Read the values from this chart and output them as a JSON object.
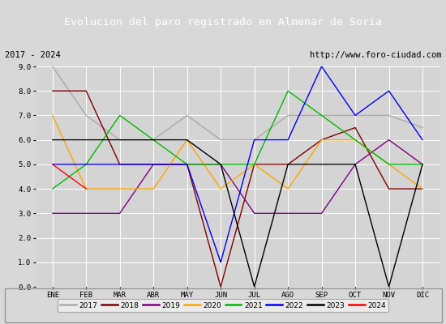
{
  "title": "Evolucion del paro registrado en Almenar de Soria",
  "subtitle_left": "2017 - 2024",
  "subtitle_right": "http://www.foro-ciudad.com",
  "months": [
    "ENE",
    "FEB",
    "MAR",
    "ABR",
    "MAY",
    "JUN",
    "JUL",
    "AGO",
    "SEP",
    "OCT",
    "NOV",
    "DIC"
  ],
  "ylim": [
    0,
    9.0
  ],
  "yticks": [
    0.0,
    1.0,
    2.0,
    3.0,
    4.0,
    5.0,
    6.0,
    7.0,
    8.0,
    9.0
  ],
  "series": {
    "2017": {
      "color": "#aaaaaa",
      "data": [
        9.0,
        7.0,
        6.0,
        6.0,
        7.0,
        6.0,
        6.0,
        7.0,
        7.0,
        7.0,
        7.0,
        6.5
      ]
    },
    "2018": {
      "color": "#800000",
      "data": [
        8.0,
        8.0,
        5.0,
        5.0,
        5.0,
        0.0,
        5.0,
        5.0,
        6.0,
        6.5,
        4.0,
        4.0
      ]
    },
    "2019": {
      "color": "#800080",
      "data": [
        3.0,
        3.0,
        3.0,
        5.0,
        5.0,
        5.0,
        3.0,
        3.0,
        3.0,
        5.0,
        6.0,
        5.0
      ]
    },
    "2020": {
      "color": "#ffa500",
      "data": [
        7.0,
        4.0,
        4.0,
        4.0,
        6.0,
        4.0,
        5.0,
        4.0,
        6.0,
        6.0,
        5.0,
        4.0
      ]
    },
    "2021": {
      "color": "#00bb00",
      "data": [
        4.0,
        5.0,
        7.0,
        6.0,
        5.0,
        5.0,
        5.0,
        8.0,
        7.0,
        6.0,
        5.0,
        5.0
      ]
    },
    "2022": {
      "color": "#0000ff",
      "data": [
        5.0,
        5.0,
        5.0,
        5.0,
        5.0,
        1.0,
        6.0,
        6.0,
        9.0,
        7.0,
        8.0,
        6.0
      ]
    },
    "2023": {
      "color": "#000000",
      "data": [
        6.0,
        6.0,
        6.0,
        6.0,
        6.0,
        5.0,
        0.0,
        5.0,
        5.0,
        5.0,
        0.0,
        5.0
      ]
    },
    "2024": {
      "color": "#ff0000",
      "data": [
        5.0,
        4.0,
        null,
        null,
        null,
        null,
        null,
        null,
        null,
        null,
        null,
        null
      ]
    }
  },
  "background_color": "#d8d8d8",
  "plot_bg_color": "#d4d4d4",
  "title_bg_color": "#4f81bd",
  "title_color": "#ffffff",
  "subtitle_bg_color": "#e8e8e8",
  "grid_color": "#ffffff",
  "legend_bg_color": "#f0f0f0",
  "legend_years": [
    "2017",
    "2018",
    "2019",
    "2020",
    "2021",
    "2022",
    "2023",
    "2024"
  ]
}
